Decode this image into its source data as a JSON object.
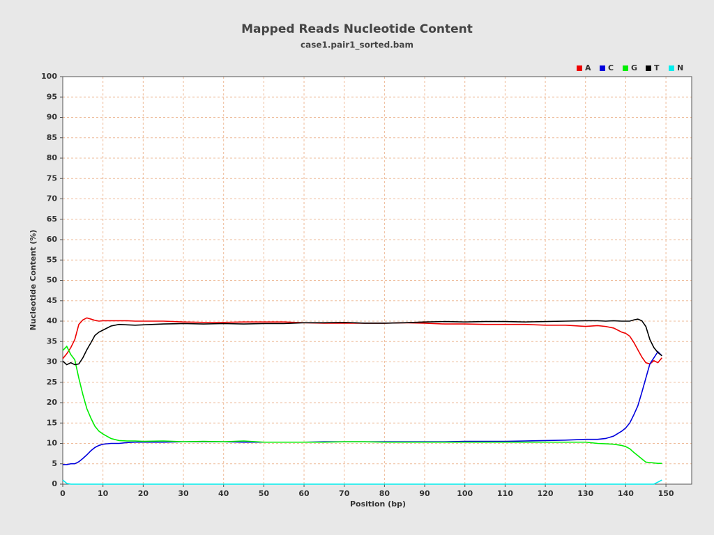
{
  "chart_data": {
    "type": "line",
    "title": "Mapped Reads Nucleotide Content",
    "subtitle": "case1.pair1_sorted.bam",
    "x_label": "Position (bp)",
    "y_label": "Nucleotide Content (%)",
    "x": [
      0,
      1,
      2,
      3,
      4,
      5,
      6,
      7,
      8,
      9,
      10,
      12,
      14,
      16,
      18,
      20,
      25,
      30,
      35,
      40,
      45,
      50,
      55,
      60,
      65,
      70,
      75,
      80,
      85,
      90,
      95,
      100,
      105,
      110,
      115,
      120,
      125,
      130,
      133,
      135,
      137,
      139,
      140,
      141,
      142,
      143,
      144,
      145,
      146,
      147,
      148,
      149
    ],
    "series": [
      {
        "name": "A",
        "color": "#ee0000",
        "values": [
          30.8,
          32,
          33.5,
          35.5,
          39.2,
          40.3,
          40.8,
          40.5,
          40.2,
          40,
          40.1,
          40.1,
          40.1,
          40.1,
          40,
          40,
          40,
          39.8,
          39.7,
          39.7,
          39.8,
          39.8,
          39.8,
          39.6,
          39.5,
          39.5,
          39.5,
          39.5,
          39.6,
          39.5,
          39.3,
          39.3,
          39.2,
          39.2,
          39.2,
          39,
          39,
          38.7,
          38.9,
          38.7,
          38.3,
          37.3,
          37,
          36.3,
          34.8,
          33,
          31.2,
          29.8,
          29.5,
          30.3,
          29.8,
          31
        ]
      },
      {
        "name": "C",
        "color": "#0000dd",
        "values": [
          4.8,
          4.8,
          5,
          5,
          5.5,
          6.3,
          7.2,
          8.2,
          9,
          9.5,
          9.8,
          10,
          10,
          10.2,
          10.3,
          10.3,
          10.3,
          10.4,
          10.4,
          10.4,
          10.3,
          10.3,
          10.3,
          10.3,
          10.4,
          10.4,
          10.4,
          10.4,
          10.4,
          10.4,
          10.4,
          10.5,
          10.5,
          10.5,
          10.6,
          10.7,
          10.8,
          11,
          11,
          11.2,
          11.8,
          13,
          13.8,
          15,
          17,
          19.2,
          22.5,
          26,
          29.5,
          31,
          32.5,
          31.5
        ]
      },
      {
        "name": "G",
        "color": "#00ee00",
        "values": [
          32.8,
          33.8,
          31.8,
          30.5,
          26,
          22,
          18.5,
          16.2,
          14.2,
          13,
          12.3,
          11.2,
          10.7,
          10.6,
          10.6,
          10.5,
          10.6,
          10.4,
          10.5,
          10.4,
          10.6,
          10.3,
          10.3,
          10.3,
          10.3,
          10.4,
          10.4,
          10.3,
          10.3,
          10.3,
          10.3,
          10.3,
          10.3,
          10.3,
          10.3,
          10.3,
          10.3,
          10.3,
          10,
          9.9,
          9.8,
          9.5,
          9.2,
          8.7,
          7.8,
          7,
          6.2,
          5.4,
          5.3,
          5.2,
          5.1,
          5.1
        ]
      },
      {
        "name": "T",
        "color": "#000000",
        "values": [
          30.2,
          29.3,
          29.8,
          29.3,
          29.5,
          31,
          33,
          34.7,
          36.5,
          37.3,
          37.8,
          38.8,
          39.2,
          39.1,
          39,
          39.1,
          39.3,
          39.4,
          39.3,
          39.4,
          39.3,
          39.4,
          39.4,
          39.6,
          39.6,
          39.7,
          39.5,
          39.5,
          39.6,
          39.8,
          39.9,
          39.8,
          39.9,
          39.9,
          39.8,
          39.9,
          40,
          40.1,
          40.1,
          40,
          40.1,
          40,
          40,
          40,
          40.3,
          40.5,
          40.1,
          38.7,
          35.5,
          33.5,
          32.3,
          31.5
        ]
      },
      {
        "name": "N",
        "color": "#00eeee",
        "values": [
          1,
          0.2,
          0,
          0,
          0,
          0,
          0,
          0,
          0,
          0,
          0,
          0,
          0,
          0,
          0,
          0,
          0,
          0,
          0,
          0,
          0,
          0,
          0,
          0,
          0,
          0,
          0,
          0,
          0,
          0,
          0,
          0,
          0,
          0,
          0,
          0,
          0,
          0,
          0,
          0,
          0,
          0,
          0,
          0,
          0,
          0,
          0,
          0,
          0,
          0,
          0.5,
          1
        ]
      }
    ],
    "xlim": [
      0,
      156.4
    ],
    "xticks": [
      0,
      10,
      20,
      30,
      40,
      50,
      60,
      70,
      80,
      90,
      100,
      110,
      120,
      130,
      140,
      150
    ],
    "ylim": [
      0,
      100
    ],
    "yticks": [
      0,
      5,
      10,
      15,
      20,
      25,
      30,
      35,
      40,
      45,
      50,
      55,
      60,
      65,
      70,
      75,
      80,
      85,
      90,
      95,
      100
    ],
    "grid": true,
    "legend": "top-right"
  }
}
